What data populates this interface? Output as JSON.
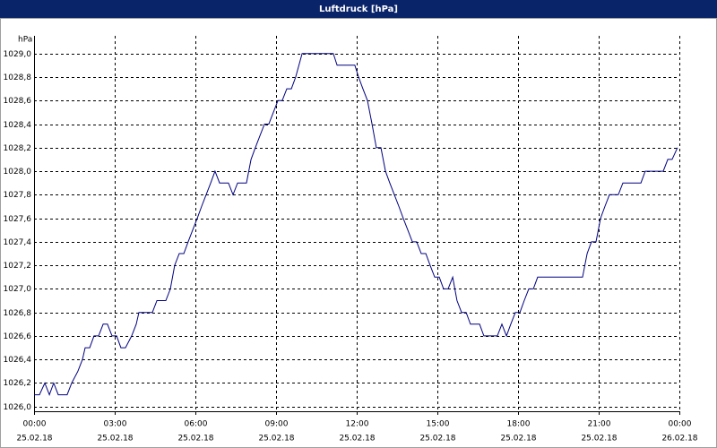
{
  "chart_data": {
    "type": "line",
    "title": "Luftdruck [hPa]",
    "y_unit": "hPa",
    "x": [
      0,
      0.2,
      0.4,
      0.57,
      0.73,
      0.9,
      1.23,
      1.4,
      1.63,
      1.8,
      1.9,
      2.07,
      2.23,
      2.4,
      2.57,
      2.73,
      2.9,
      3.07,
      3.23,
      3.4,
      3.63,
      3.8,
      3.9,
      4.4,
      4.57,
      4.9,
      5.07,
      5.23,
      5.4,
      5.57,
      5.73,
      5.9,
      6.07,
      6.23,
      6.4,
      6.57,
      6.73,
      6.9,
      7.23,
      7.4,
      7.57,
      7.9,
      8.07,
      8.23,
      8.4,
      8.57,
      8.73,
      8.9,
      9.07,
      9.23,
      9.4,
      9.57,
      9.73,
      9.97,
      11.13,
      11.27,
      11.93,
      12.07,
      12.23,
      12.4,
      12.57,
      12.73,
      12.9,
      13.07,
      13.23,
      13.4,
      13.57,
      13.73,
      13.9,
      14.07,
      14.23,
      14.4,
      14.57,
      14.73,
      14.9,
      15.07,
      15.23,
      15.4,
      15.57,
      15.73,
      15.9,
      16.07,
      16.23,
      16.57,
      16.73,
      17.23,
      17.4,
      17.57,
      17.73,
      17.9,
      18.07,
      18.23,
      18.4,
      18.57,
      18.73,
      20.4,
      20.57,
      20.73,
      20.9,
      21.07,
      21.23,
      21.4,
      21.73,
      21.9,
      22.57,
      22.73,
      23.4,
      23.57,
      23.73,
      23.93
    ],
    "series": [
      {
        "name": "Luftdruck",
        "color": "#000080",
        "values": [
          1026.1,
          1026.1,
          1026.2,
          1026.1,
          1026.2,
          1026.1,
          1026.1,
          1026.2,
          1026.3,
          1026.4,
          1026.5,
          1026.5,
          1026.6,
          1026.6,
          1026.7,
          1026.7,
          1026.6,
          1026.6,
          1026.5,
          1026.5,
          1026.6,
          1026.7,
          1026.8,
          1026.8,
          1026.9,
          1026.9,
          1027.0,
          1027.2,
          1027.3,
          1027.3,
          1027.4,
          1027.5,
          1027.6,
          1027.7,
          1027.8,
          1027.9,
          1028.0,
          1027.9,
          1027.9,
          1027.8,
          1027.9,
          1027.9,
          1028.1,
          1028.2,
          1028.3,
          1028.4,
          1028.4,
          1028.5,
          1028.6,
          1028.6,
          1028.7,
          1028.7,
          1028.8,
          1029.0,
          1029.0,
          1028.9,
          1028.9,
          1028.8,
          1028.7,
          1028.6,
          1028.4,
          1028.2,
          1028.2,
          1028.0,
          1027.9,
          1027.8,
          1027.7,
          1027.6,
          1027.5,
          1027.4,
          1027.4,
          1027.3,
          1027.3,
          1027.2,
          1027.1,
          1027.1,
          1027.0,
          1027.0,
          1027.1,
          1026.9,
          1026.8,
          1026.8,
          1026.7,
          1026.7,
          1026.6,
          1026.6,
          1026.7,
          1026.6,
          1026.7,
          1026.8,
          1026.8,
          1026.9,
          1027.0,
          1027.0,
          1027.1,
          1027.1,
          1027.3,
          1027.4,
          1027.4,
          1027.6,
          1027.7,
          1027.8,
          1027.8,
          1027.9,
          1027.9,
          1028.0,
          1028.0,
          1028.1,
          1028.1,
          1028.2
        ]
      }
    ],
    "xlim": [
      0,
      24
    ],
    "xticks": [
      {
        "value": 0,
        "label": "00:00"
      },
      {
        "value": 3,
        "label": "03:00"
      },
      {
        "value": 6,
        "label": "06:00"
      },
      {
        "value": 9,
        "label": "09:00"
      },
      {
        "value": 12,
        "label": "12:00"
      },
      {
        "value": 15,
        "label": "15:00"
      },
      {
        "value": 18,
        "label": "18:00"
      },
      {
        "value": 21,
        "label": "21:00"
      },
      {
        "value": 24,
        "label": "00:00"
      }
    ],
    "xtick_dates": [
      "25.02.18",
      "25.02.18",
      "25.02.18",
      "25.02.18",
      "25.02.18",
      "25.02.18",
      "25.02.18",
      "25.02.18",
      "26.02.18"
    ],
    "ylim": [
      1025.96,
      1029.15
    ],
    "yticks": [
      {
        "value": 1026.0,
        "label": "1026,0"
      },
      {
        "value": 1026.2,
        "label": "1026,2"
      },
      {
        "value": 1026.4,
        "label": "1026,4"
      },
      {
        "value": 1026.6,
        "label": "1026,6"
      },
      {
        "value": 1026.8,
        "label": "1026,8"
      },
      {
        "value": 1027.0,
        "label": "1027,0"
      },
      {
        "value": 1027.2,
        "label": "1027,2"
      },
      {
        "value": 1027.4,
        "label": "1027,4"
      },
      {
        "value": 1027.6,
        "label": "1027,6"
      },
      {
        "value": 1027.8,
        "label": "1027,8"
      },
      {
        "value": 1028.0,
        "label": "1028,0"
      },
      {
        "value": 1028.2,
        "label": "1028,2"
      },
      {
        "value": 1028.4,
        "label": "1028,4"
      },
      {
        "value": 1028.6,
        "label": "1028,6"
      },
      {
        "value": 1028.8,
        "label": "1028,8"
      },
      {
        "value": 1029.0,
        "label": "1029,0"
      }
    ],
    "grid": true
  }
}
